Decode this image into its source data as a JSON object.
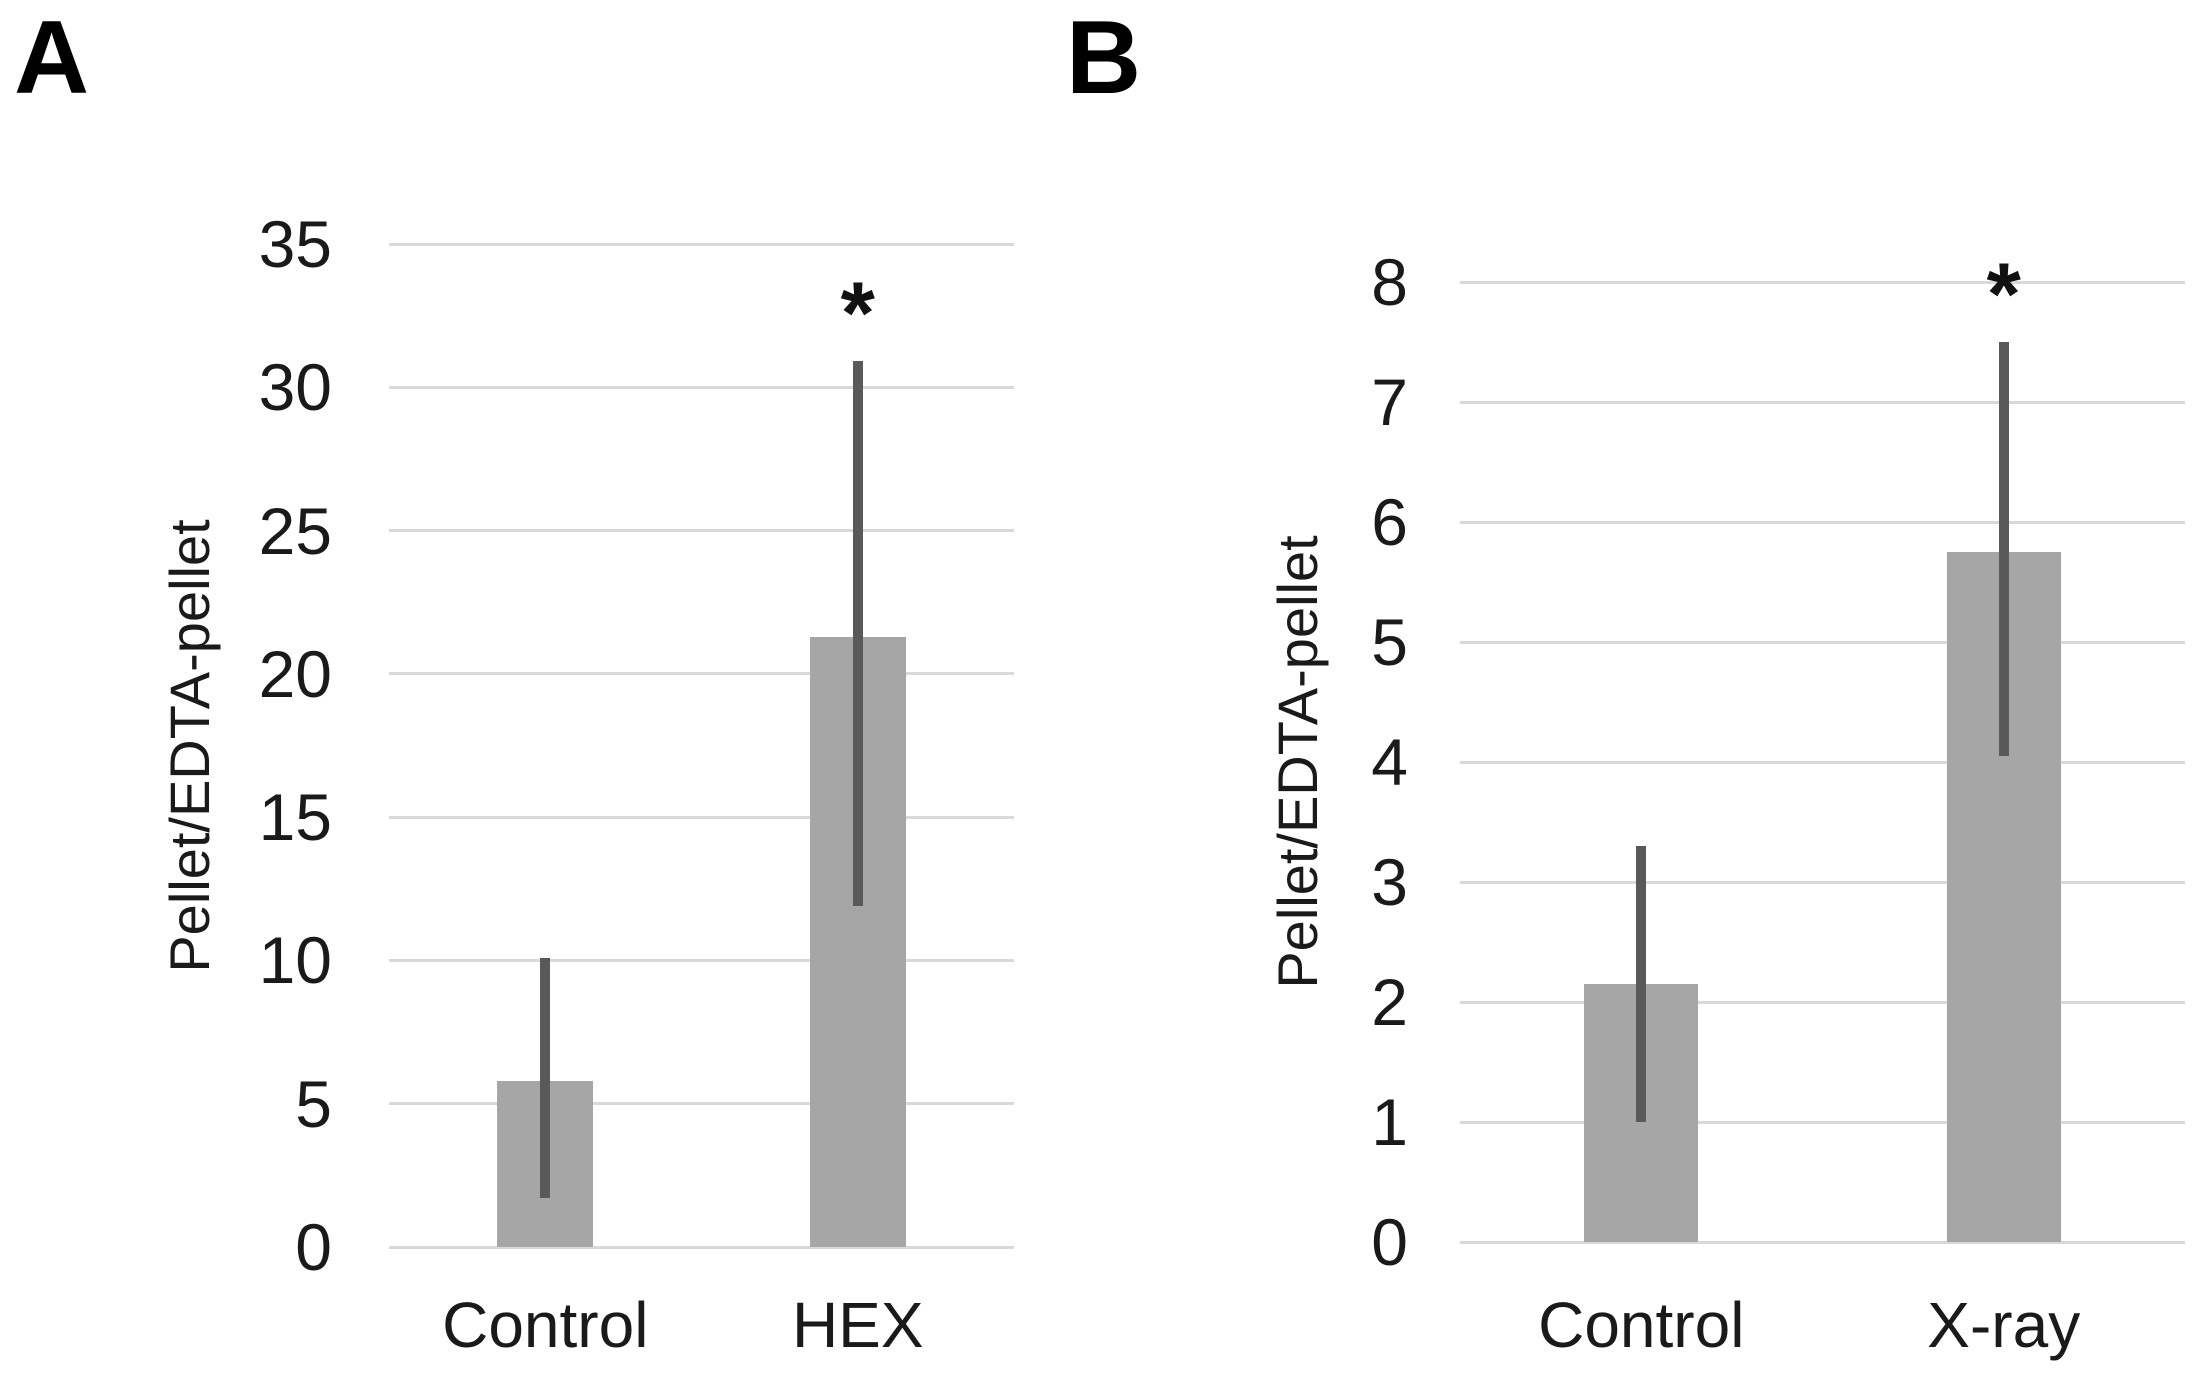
{
  "figure": {
    "background_color": "#ffffff",
    "bar_color": "#a6a6a6",
    "error_bar_color": "#595959",
    "gridline_color": "#d9d9d9",
    "text_color": "#1a1a1a"
  },
  "chart_data": [
    {
      "type": "bar",
      "panel": "A",
      "title": "",
      "xlabel": "",
      "ylabel": "Pellet/EDTA-pellet",
      "ylim": [
        0,
        35
      ],
      "ytick_step": 5,
      "yticks": [
        0,
        5,
        10,
        15,
        20,
        25,
        30,
        35
      ],
      "grid": true,
      "legend_position": "none",
      "categories": [
        "Control",
        "HEX"
      ],
      "values": [
        5.8,
        21.3
      ],
      "error_low": [
        1.7,
        11.9
      ],
      "error_high": [
        10.1,
        30.9
      ],
      "significance": [
        "",
        "*"
      ]
    },
    {
      "type": "bar",
      "panel": "B",
      "title": "",
      "xlabel": "",
      "ylabel": "Pellet/EDTA-pellet",
      "ylim": [
        0,
        8
      ],
      "ytick_step": 1,
      "yticks": [
        0,
        1,
        2,
        3,
        4,
        5,
        6,
        7,
        8
      ],
      "grid": true,
      "legend_position": "none",
      "categories": [
        "Control",
        "X-ray"
      ],
      "values": [
        2.15,
        5.75
      ],
      "error_low": [
        1.0,
        4.05
      ],
      "error_high": [
        3.3,
        7.5
      ],
      "significance": [
        "",
        "*"
      ]
    }
  ]
}
